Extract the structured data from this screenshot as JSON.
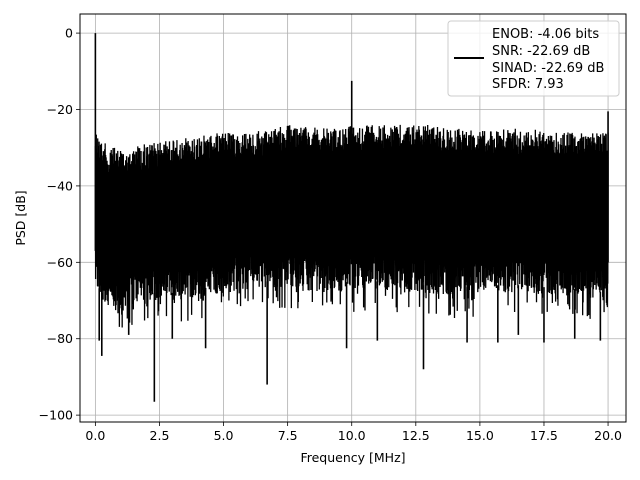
{
  "chart_data": {
    "type": "line",
    "title": "",
    "xlabel": "Frequency [MHz]",
    "ylabel": "PSD [dB]",
    "xlim": [
      -0.6,
      20.7
    ],
    "ylim": [
      -101.8,
      5
    ],
    "grid": true,
    "xticks": [
      0.0,
      2.5,
      5.0,
      7.5,
      10.0,
      12.5,
      15.0,
      17.5,
      20.0
    ],
    "xtick_labels": [
      "0.0",
      "2.5",
      "5.0",
      "7.5",
      "10.0",
      "12.5",
      "15.0",
      "17.5",
      "20.0"
    ],
    "yticks": [
      0,
      -20,
      -40,
      -60,
      -80,
      -100
    ],
    "ytick_labels": [
      "0",
      "−20",
      "−40",
      "−60",
      "−80",
      "−100"
    ],
    "series": [
      {
        "name": "ENOB: -4.06 bits",
        "color": "#000000",
        "envelope": {
          "x": [
            0.0,
            0.5,
            1.0,
            2.0,
            3.0,
            4.0,
            5.0,
            6.0,
            7.0,
            7.5,
            8.0,
            9.0,
            10.0,
            11.0,
            12.0,
            13.0,
            14.0,
            15.0,
            16.0,
            17.0,
            18.0,
            19.0,
            20.0
          ],
          "upper": [
            -25,
            -30,
            -30,
            -29,
            -28,
            -27,
            -26,
            -26,
            -25,
            -24,
            -24,
            -25,
            -24,
            -24,
            -24,
            -24,
            -25,
            -25,
            -25,
            -25,
            -26,
            -26,
            -26
          ],
          "lower": [
            -67,
            -73,
            -72,
            -70,
            -70,
            -69,
            -68,
            -67,
            -67,
            -66,
            -67,
            -68,
            -67,
            -67,
            -68,
            -68,
            -69,
            -68,
            -68,
            -68,
            -69,
            -69,
            -70
          ]
        },
        "peaks": [
          {
            "x": 0.0,
            "y": 0.0
          },
          {
            "x": 10.0,
            "y": -12.5
          },
          {
            "x": 20.0,
            "y": -20.5
          }
        ],
        "dips": [
          {
            "x": 0.15,
            "y": -80.5
          },
          {
            "x": 0.25,
            "y": -84.5
          },
          {
            "x": 1.3,
            "y": -79
          },
          {
            "x": 2.3,
            "y": -96.5
          },
          {
            "x": 3.0,
            "y": -80
          },
          {
            "x": 4.3,
            "y": -82.5
          },
          {
            "x": 6.7,
            "y": -92
          },
          {
            "x": 9.8,
            "y": -82.5
          },
          {
            "x": 11.0,
            "y": -80.5
          },
          {
            "x": 12.8,
            "y": -88
          },
          {
            "x": 14.5,
            "y": -81
          },
          {
            "x": 15.7,
            "y": -81
          },
          {
            "x": 16.5,
            "y": -79
          },
          {
            "x": 17.5,
            "y": -81
          },
          {
            "x": 18.7,
            "y": -80
          },
          {
            "x": 19.7,
            "y": -80.5
          }
        ]
      }
    ],
    "legend": {
      "placement": "top-right",
      "entries": [
        "ENOB: -4.06 bits",
        "SNR: -22.69 dB",
        "SINAD: -22.69 dB",
        "SFDR: 7.93"
      ]
    }
  }
}
